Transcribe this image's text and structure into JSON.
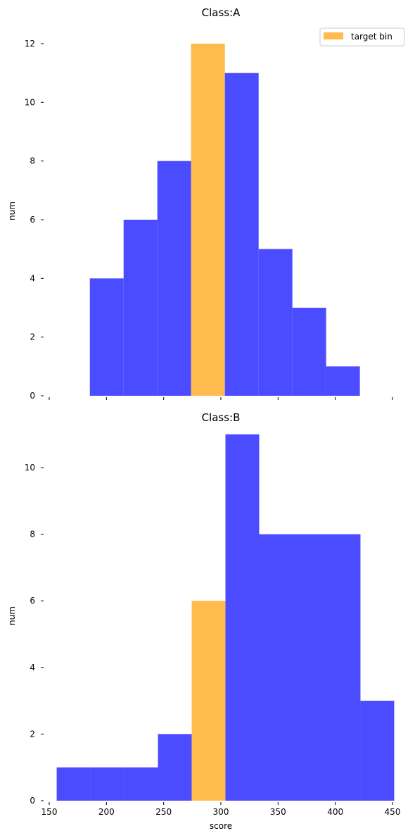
{
  "colors": {
    "base": "#4b4bff",
    "highlight": "#ffbb4d"
  },
  "legend": {
    "label": "target bin",
    "location": "upper right"
  },
  "chart_data": [
    {
      "type": "bar",
      "title": "Class:A",
      "xlabel": "",
      "ylabel": "num",
      "xlim": [
        150,
        450
      ],
      "ylim": [
        0,
        12.6
      ],
      "xticks": [
        150,
        200,
        250,
        300,
        350,
        400,
        450
      ],
      "xtick_labels_visible": false,
      "yticks": [
        0,
        2,
        4,
        6,
        8,
        10,
        12
      ],
      "bins": [
        {
          "x0": 185.5,
          "x1": 215.0,
          "count": 4,
          "target": false
        },
        {
          "x0": 215.0,
          "x1": 244.5,
          "count": 6,
          "target": false
        },
        {
          "x0": 244.5,
          "x1": 274.0,
          "count": 8,
          "target": false
        },
        {
          "x0": 274.0,
          "x1": 303.5,
          "count": 12,
          "target": true
        },
        {
          "x0": 303.5,
          "x1": 333.0,
          "count": 11,
          "target": false
        },
        {
          "x0": 333.0,
          "x1": 362.5,
          "count": 5,
          "target": false
        },
        {
          "x0": 362.5,
          "x1": 392.0,
          "count": 3,
          "target": false
        },
        {
          "x0": 392.0,
          "x1": 421.5,
          "count": 1,
          "target": false
        }
      ]
    },
    {
      "type": "bar",
      "title": "Class:B",
      "xlabel": "score",
      "ylabel": "num",
      "xlim": [
        150,
        450
      ],
      "ylim": [
        0,
        11.1
      ],
      "xticks": [
        150,
        200,
        250,
        300,
        350,
        400,
        450
      ],
      "xtick_labels_visible": true,
      "yticks": [
        0,
        2,
        4,
        6,
        8,
        10
      ],
      "bins": [
        {
          "x0": 156.5,
          "x1": 186.0,
          "count": 1,
          "target": false
        },
        {
          "x0": 186.0,
          "x1": 215.5,
          "count": 1,
          "target": false
        },
        {
          "x0": 215.5,
          "x1": 245.0,
          "count": 1,
          "target": false
        },
        {
          "x0": 245.0,
          "x1": 274.5,
          "count": 2,
          "target": false
        },
        {
          "x0": 274.5,
          "x1": 304.0,
          "count": 6,
          "target": true
        },
        {
          "x0": 304.0,
          "x1": 333.5,
          "count": 11,
          "target": false
        },
        {
          "x0": 333.5,
          "x1": 363.0,
          "count": 8,
          "target": false
        },
        {
          "x0": 363.0,
          "x1": 392.5,
          "count": 8,
          "target": false
        },
        {
          "x0": 392.5,
          "x1": 422.0,
          "count": 8,
          "target": false
        },
        {
          "x0": 422.0,
          "x1": 451.5,
          "count": 3,
          "target": false
        }
      ]
    }
  ]
}
